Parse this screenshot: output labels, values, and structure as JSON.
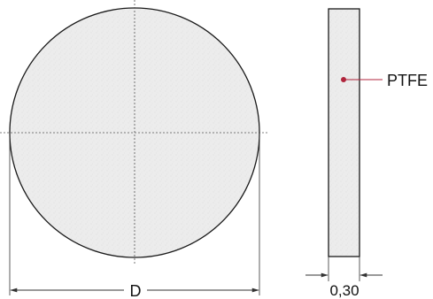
{
  "drawing": {
    "material_label": "PTFE",
    "diameter_label": "D",
    "thickness_label": "0,30"
  },
  "colors": {
    "outline": "#1a1a1a",
    "fill": "#ececec",
    "accent": "#b0243c",
    "dimension": "#333333",
    "centerline": "#555555"
  }
}
